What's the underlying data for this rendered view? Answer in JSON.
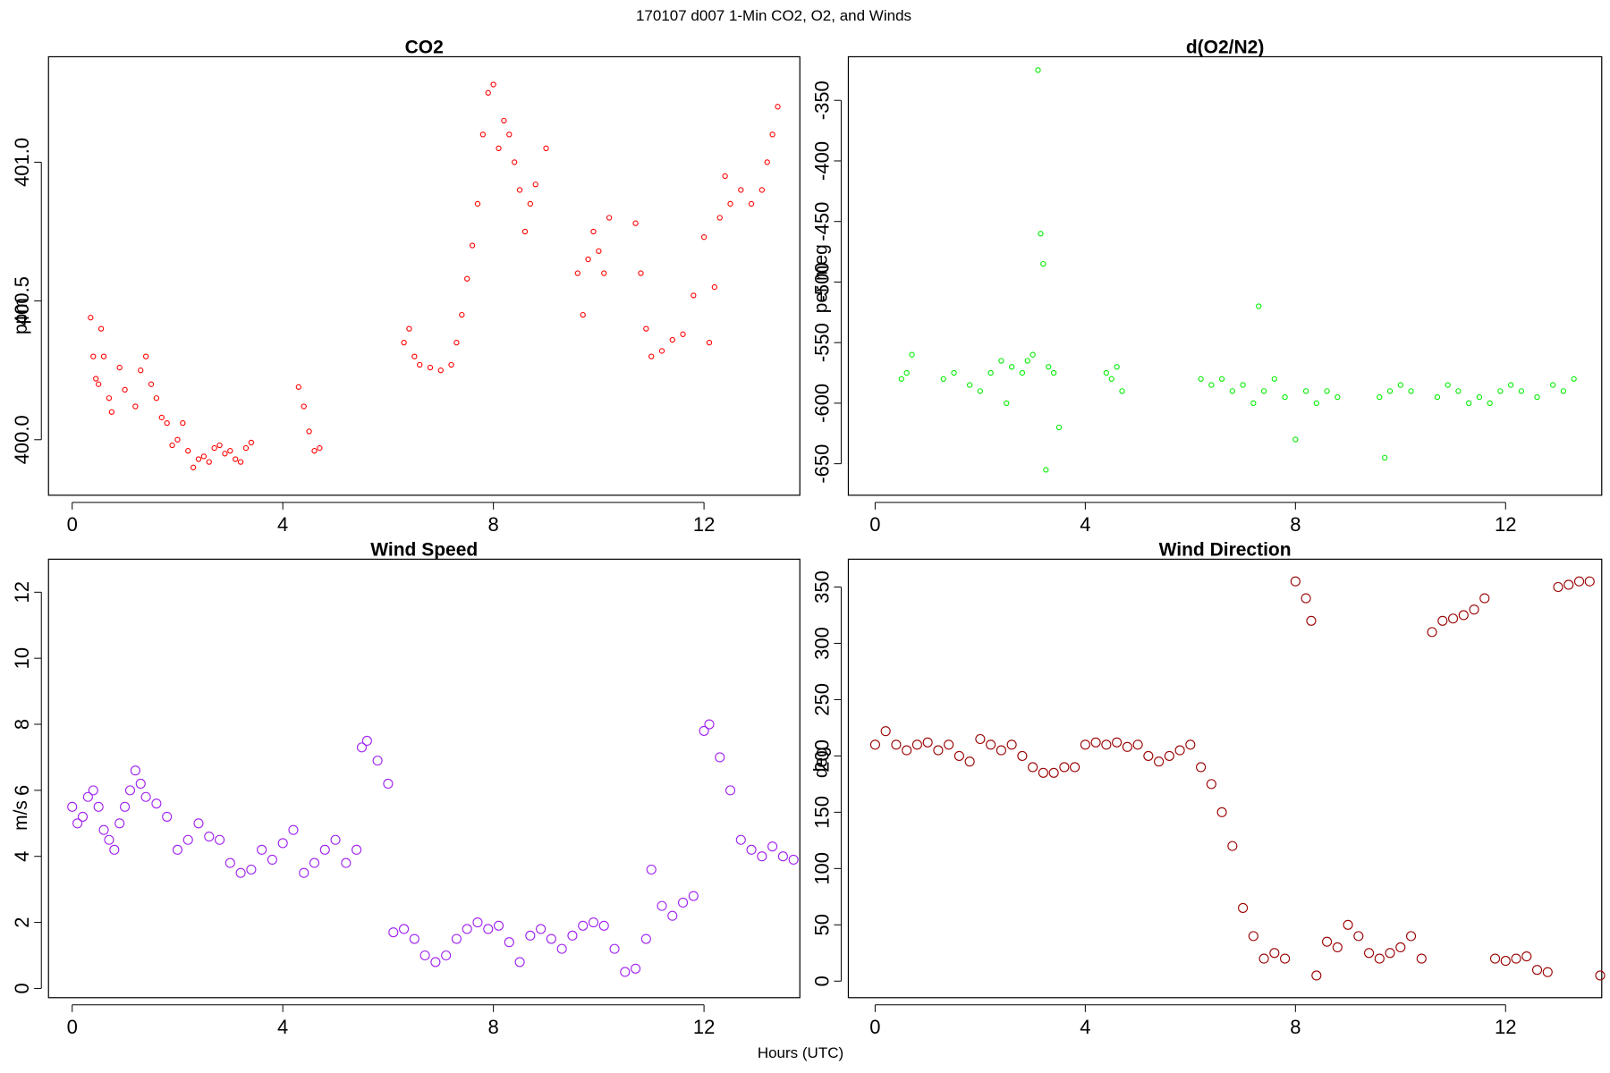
{
  "title": "170107   d007   1-Min CO2, O2, and Winds",
  "x_label": "Hours (UTC)",
  "chart_data": [
    {
      "type": "scatter",
      "title": "CO2",
      "y_label": "ppm",
      "color": "#ff0000",
      "xlim": [
        -0.45,
        13.82
      ],
      "xticks": [
        0,
        4,
        8,
        12
      ],
      "ylim": [
        399.8,
        401.38
      ],
      "yticks": [
        {
          "value": 400,
          "label": "400.0"
        },
        {
          "value": 400.5,
          "label": "400.5"
        },
        {
          "value": 401,
          "label": "401.0"
        }
      ],
      "x": [
        0.35,
        0.4,
        0.45,
        0.5,
        0.55,
        0.6,
        0.7,
        0.75,
        0.9,
        1.0,
        1.2,
        1.3,
        1.4,
        1.5,
        1.6,
        1.7,
        1.8,
        1.9,
        2.0,
        2.1,
        2.2,
        2.3,
        2.4,
        2.5,
        2.6,
        2.7,
        2.8,
        2.9,
        3.0,
        3.1,
        3.2,
        3.3,
        3.4,
        4.3,
        4.4,
        4.5,
        4.6,
        4.7,
        6.3,
        6.4,
        6.5,
        6.6,
        6.8,
        7.0,
        7.2,
        7.3,
        7.4,
        7.5,
        7.6,
        7.7,
        7.8,
        7.9,
        8.0,
        8.1,
        8.2,
        8.3,
        8.4,
        8.5,
        8.6,
        8.7,
        8.8,
        9.0,
        9.6,
        9.7,
        9.8,
        9.9,
        10.0,
        10.1,
        10.2,
        10.7,
        10.8,
        10.9,
        11.0,
        11.2,
        11.4,
        11.6,
        11.8,
        12.0,
        12.1,
        12.2,
        12.3,
        12.4,
        12.5,
        12.7,
        12.9,
        13.1,
        13.2,
        13.3,
        13.4
      ],
      "values": [
        400.44,
        400.3,
        400.22,
        400.2,
        400.4,
        400.3,
        400.15,
        400.1,
        400.26,
        400.18,
        400.12,
        400.25,
        400.3,
        400.2,
        400.15,
        400.08,
        400.06,
        399.98,
        400.0,
        400.06,
        399.96,
        399.9,
        399.93,
        399.94,
        399.92,
        399.97,
        399.98,
        399.95,
        399.96,
        399.93,
        399.92,
        399.97,
        399.99,
        400.19,
        400.12,
        400.03,
        399.96,
        399.97,
        400.35,
        400.4,
        400.3,
        400.27,
        400.26,
        400.25,
        400.27,
        400.35,
        400.45,
        400.58,
        400.7,
        400.85,
        401.1,
        401.25,
        401.28,
        401.05,
        401.15,
        401.1,
        401.0,
        400.9,
        400.75,
        400.85,
        400.92,
        401.05,
        400.6,
        400.45,
        400.65,
        400.75,
        400.68,
        400.6,
        400.8,
        400.78,
        400.6,
        400.4,
        400.3,
        400.32,
        400.36,
        400.38,
        400.52,
        400.73,
        400.35,
        400.55,
        400.8,
        400.95,
        400.85,
        400.9,
        400.85,
        400.9,
        401.0,
        401.1,
        401.2
      ]
    },
    {
      "type": "scatter",
      "title": "d(O2/N2)",
      "y_label": "per meg",
      "color": "#00ee00",
      "xlim": [
        -0.51,
        13.83
      ],
      "xticks": [
        0,
        4,
        8,
        12
      ],
      "ylim": [
        -676,
        -314
      ],
      "yticks": [
        -650,
        -600,
        -550,
        -500,
        -450,
        -400,
        -350
      ],
      "x": [
        0.5,
        0.6,
        0.7,
        1.3,
        1.5,
        1.8,
        2.0,
        2.2,
        2.4,
        2.5,
        2.6,
        2.8,
        2.9,
        3.0,
        3.1,
        3.15,
        3.2,
        3.25,
        3.3,
        3.4,
        3.5,
        4.4,
        4.5,
        4.6,
        4.7,
        6.2,
        6.4,
        6.6,
        6.8,
        7.0,
        7.2,
        7.3,
        7.4,
        7.6,
        7.8,
        8.0,
        8.2,
        8.4,
        8.6,
        8.8,
        9.6,
        9.7,
        9.8,
        10.0,
        10.2,
        10.7,
        10.9,
        11.1,
        11.3,
        11.5,
        11.7,
        11.9,
        12.1,
        12.3,
        12.6,
        12.9,
        13.1,
        13.3
      ],
      "values": [
        -580,
        -575,
        -560,
        -580,
        -575,
        -585,
        -590,
        -575,
        -565,
        -600,
        -570,
        -575,
        -565,
        -560,
        -325,
        -460,
        -485,
        -655,
        -570,
        -575,
        -620,
        -575,
        -580,
        -570,
        -590,
        -580,
        -585,
        -580,
        -590,
        -585,
        -600,
        -520,
        -590,
        -580,
        -595,
        -630,
        -590,
        -600,
        -590,
        -595,
        -595,
        -645,
        -590,
        -585,
        -590,
        -595,
        -585,
        -590,
        -600,
        -595,
        -600,
        -590,
        -585,
        -590,
        -595,
        -585,
        -590,
        -580
      ]
    },
    {
      "type": "scatter",
      "title": "Wind Speed",
      "y_label": "m/s",
      "color": "#a020f0",
      "xlim": [
        -0.45,
        13.82
      ],
      "xticks": [
        0,
        4,
        8,
        12
      ],
      "ylim": [
        -0.28,
        13
      ],
      "yticks": [
        0,
        2,
        4,
        6,
        8,
        10,
        12
      ],
      "x": [
        0.0,
        0.1,
        0.2,
        0.3,
        0.4,
        0.5,
        0.6,
        0.7,
        0.8,
        0.9,
        1.0,
        1.1,
        1.2,
        1.3,
        1.4,
        1.6,
        1.8,
        2.0,
        2.2,
        2.4,
        2.6,
        2.8,
        3.0,
        3.2,
        3.4,
        3.6,
        3.8,
        4.0,
        4.2,
        4.4,
        4.6,
        4.8,
        5.0,
        5.2,
        5.4,
        5.5,
        5.6,
        5.8,
        6.0,
        6.1,
        6.3,
        6.5,
        6.7,
        6.9,
        7.1,
        7.3,
        7.5,
        7.7,
        7.9,
        8.1,
        8.3,
        8.5,
        8.7,
        8.9,
        9.1,
        9.3,
        9.5,
        9.7,
        9.9,
        10.1,
        10.3,
        10.5,
        10.7,
        10.9,
        11.0,
        11.2,
        11.4,
        11.6,
        11.8,
        12.0,
        12.1,
        12.3,
        12.5,
        12.7,
        12.9,
        13.1,
        13.3,
        13.5,
        13.7
      ],
      "values": [
        5.5,
        5.0,
        5.2,
        5.8,
        6.0,
        5.5,
        4.8,
        4.5,
        4.2,
        5.0,
        5.5,
        6.0,
        6.6,
        6.2,
        5.8,
        5.6,
        5.2,
        4.2,
        4.5,
        5.0,
        4.6,
        4.5,
        3.8,
        3.5,
        3.6,
        4.2,
        3.9,
        4.4,
        4.8,
        3.5,
        3.8,
        4.2,
        4.5,
        3.8,
        4.2,
        7.3,
        7.5,
        6.9,
        6.2,
        1.7,
        1.8,
        1.5,
        1.0,
        0.8,
        1.0,
        1.5,
        1.8,
        2.0,
        1.8,
        1.9,
        1.4,
        0.8,
        1.6,
        1.8,
        1.5,
        1.2,
        1.6,
        1.9,
        2.0,
        1.9,
        1.2,
        0.5,
        0.6,
        1.5,
        3.6,
        2.5,
        2.2,
        2.6,
        2.8,
        7.8,
        8.0,
        7.0,
        6.0,
        4.5,
        4.2,
        4.0,
        4.3,
        4.0,
        3.9
      ]
    },
    {
      "type": "scatter",
      "title": "Wind Direction",
      "y_label": "deg",
      "color": "#990000",
      "xlim": [
        -0.51,
        13.83
      ],
      "xticks": [
        0,
        4,
        8,
        12
      ],
      "ylim": [
        -14.7,
        374.7
      ],
      "yticks": [
        0,
        50,
        100,
        150,
        200,
        250,
        300,
        350
      ],
      "x": [
        0,
        0.2,
        0.4,
        0.6,
        0.8,
        1.0,
        1.2,
        1.4,
        1.6,
        1.8,
        2.0,
        2.2,
        2.4,
        2.6,
        2.8,
        3.0,
        3.2,
        3.4,
        3.6,
        3.8,
        4.0,
        4.2,
        4.4,
        4.6,
        4.8,
        5.0,
        5.2,
        5.4,
        5.6,
        5.8,
        6.0,
        6.2,
        6.4,
        6.6,
        6.8,
        7.0,
        7.2,
        7.4,
        7.6,
        7.8,
        8.0,
        8.2,
        8.3,
        8.4,
        8.6,
        8.8,
        9.0,
        9.2,
        9.4,
        9.6,
        9.8,
        10.0,
        10.2,
        10.4,
        10.6,
        10.8,
        11.0,
        11.2,
        11.4,
        11.6,
        11.8,
        12.0,
        12.2,
        12.4,
        12.6,
        12.8,
        13.0,
        13.2,
        13.4,
        13.6,
        13.8
      ],
      "values": [
        210,
        222,
        210,
        205,
        210,
        212,
        205,
        210,
        200,
        195,
        215,
        210,
        205,
        210,
        200,
        190,
        185,
        185,
        190,
        190,
        210,
        212,
        210,
        212,
        208,
        210,
        200,
        195,
        200,
        205,
        210,
        190,
        175,
        150,
        120,
        65,
        40,
        20,
        25,
        20,
        355,
        340,
        320,
        5,
        35,
        30,
        50,
        40,
        25,
        20,
        25,
        30,
        40,
        20,
        310,
        320,
        322,
        325,
        330,
        340,
        20,
        18,
        20,
        22,
        10,
        8,
        350,
        352,
        355,
        355,
        5
      ]
    }
  ]
}
